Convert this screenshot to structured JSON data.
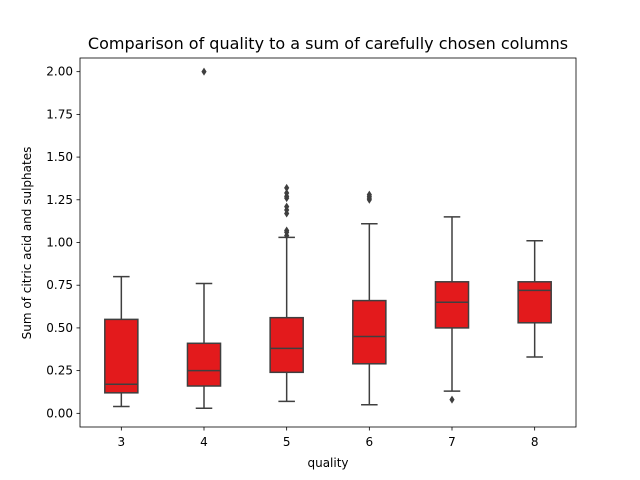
{
  "chart_data": {
    "type": "box",
    "title": "Comparison of quality to a sum of carefully chosen columns",
    "xlabel": "quality",
    "ylabel": "Sum of citric acid and sulphates",
    "categories": [
      "3",
      "4",
      "5",
      "6",
      "7",
      "8"
    ],
    "ylim": [
      -0.08,
      2.08
    ],
    "yticks": [
      "0.00",
      "0.25",
      "0.50",
      "0.75",
      "1.00",
      "1.25",
      "1.50",
      "1.75",
      "2.00"
    ],
    "grid": false,
    "boxes": [
      {
        "category": "3",
        "whisker_low": 0.04,
        "q1": 0.12,
        "median": 0.17,
        "q3": 0.55,
        "whisker_high": 0.8,
        "outliers": []
      },
      {
        "category": "4",
        "whisker_low": 0.03,
        "q1": 0.16,
        "median": 0.25,
        "q3": 0.41,
        "whisker_high": 0.76,
        "outliers": [
          2.0
        ]
      },
      {
        "category": "5",
        "whisker_low": 0.07,
        "q1": 0.24,
        "median": 0.38,
        "q3": 0.56,
        "whisker_high": 1.03,
        "outliers": [
          1.04,
          1.06,
          1.07,
          1.17,
          1.19,
          1.21,
          1.26,
          1.27,
          1.29,
          1.32
        ]
      },
      {
        "category": "6",
        "whisker_low": 0.05,
        "q1": 0.29,
        "median": 0.45,
        "q3": 0.66,
        "whisker_high": 1.11,
        "outliers": [
          1.25,
          1.26,
          1.27,
          1.28
        ]
      },
      {
        "category": "7",
        "whisker_low": 0.13,
        "q1": 0.5,
        "median": 0.65,
        "q3": 0.77,
        "whisker_high": 1.15,
        "outliers": [
          0.08
        ]
      },
      {
        "category": "8",
        "whisker_low": 0.33,
        "q1": 0.53,
        "median": 0.72,
        "q3": 0.77,
        "whisker_high": 1.01,
        "outliers": []
      }
    ],
    "colors": {
      "box_fill": "#e31a1c",
      "line": "#3f3f3f",
      "axes": "#000000"
    }
  }
}
